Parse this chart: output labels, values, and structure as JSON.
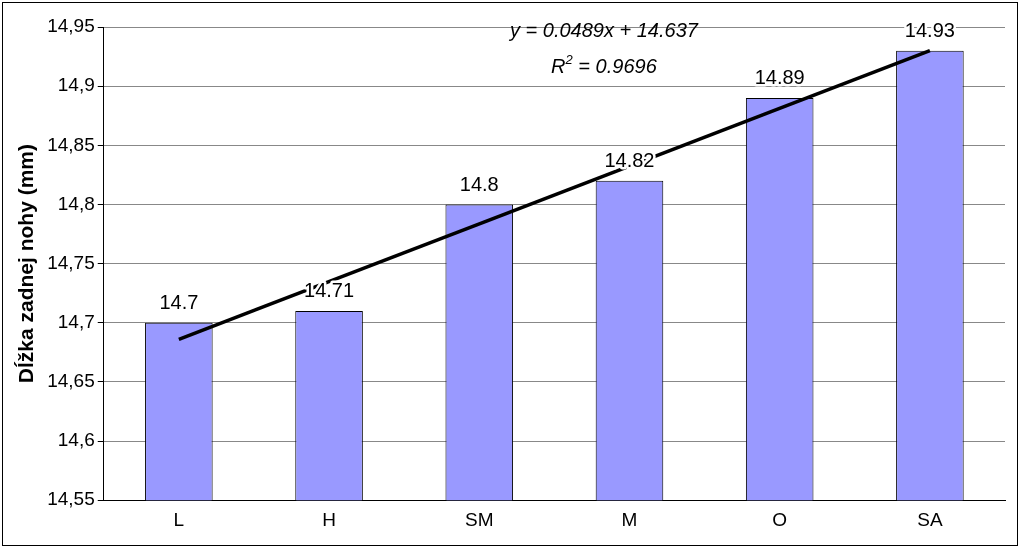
{
  "chart_data": {
    "type": "bar",
    "ylabel": "Dĺžka zadnej nohy (mm)",
    "categories": [
      "L",
      "H",
      "SM",
      "M",
      "O",
      "SA"
    ],
    "series": [
      {
        "color": "#9999ff",
        "values": [
          14.7,
          14.71,
          14.8,
          14.82,
          14.89,
          14.93
        ],
        "value_labels": [
          "14.7",
          "14.71",
          "14.8",
          "14.82",
          "14.89",
          "14.93"
        ]
      },
      {
        "type": "line",
        "color": "#000000",
        "x": [
          "L",
          "SA"
        ],
        "values": [
          14.686,
          14.93
        ]
      }
    ],
    "ylim": [
      14.55,
      14.95
    ],
    "yticks": [
      {
        "value": 14.55,
        "label": "14,55"
      },
      {
        "value": 14.6,
        "label": "14,6"
      },
      {
        "value": 14.65,
        "label": "14,65"
      },
      {
        "value": 14.7,
        "label": "14,7"
      },
      {
        "value": 14.75,
        "label": "14,75"
      },
      {
        "value": 14.8,
        "label": "14,8"
      },
      {
        "value": 14.85,
        "label": "14,85"
      },
      {
        "value": 14.9,
        "label": "14,9"
      },
      {
        "value": 14.95,
        "label": "14,95"
      }
    ],
    "grid": "y",
    "legend": false,
    "marker": "none",
    "annotations": [
      "y = 0.0489x + 14.637",
      "R$^{2}$ = 0.9696"
    ]
  }
}
